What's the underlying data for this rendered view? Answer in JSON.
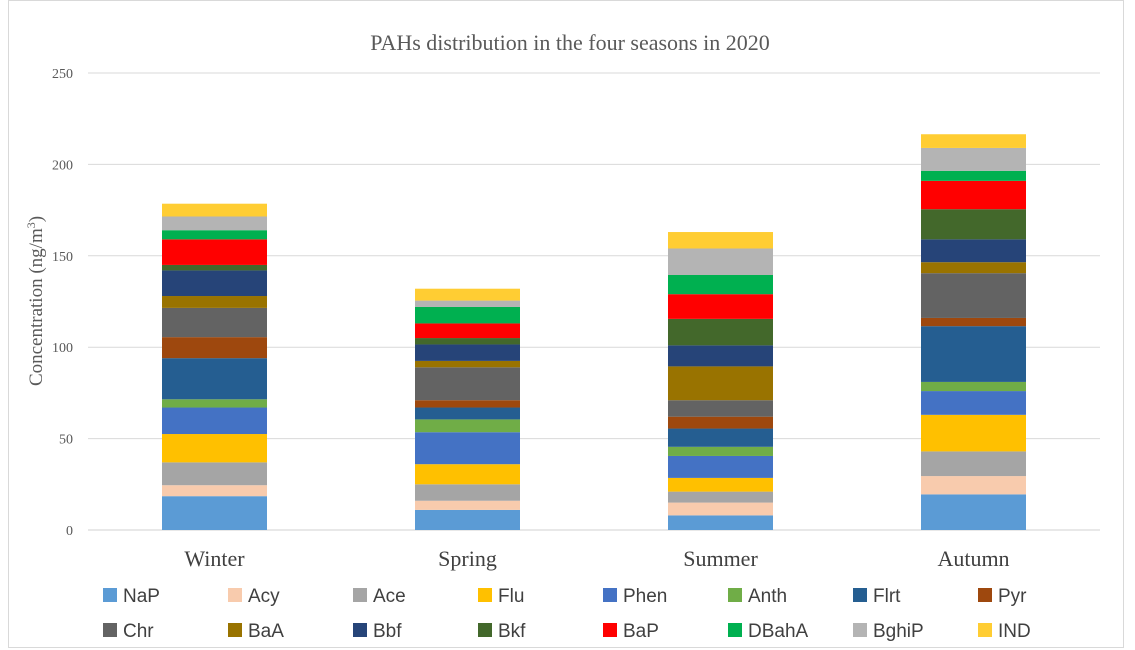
{
  "chart_data": {
    "type": "bar",
    "stacked": true,
    "title": "PAHs distribution in  the four seasons in 2020",
    "ylabel_main": "Concentration (ng/m",
    "ylabel_sup": "3",
    "ylabel_end": ")",
    "xlabel": "",
    "ylim": [
      0,
      250
    ],
    "yticks": [
      0,
      50,
      100,
      150,
      200,
      250
    ],
    "grid": true,
    "legend_position": "bottom",
    "categories": [
      "Winter",
      "Spring",
      "Summer",
      "Autumn"
    ],
    "series": [
      {
        "name": "NaP",
        "color": "#5B9BD5",
        "values": [
          18.5,
          11,
          8,
          19.5
        ]
      },
      {
        "name": "Acy",
        "color": "#F8CBAD",
        "values": [
          6,
          5,
          7,
          10
        ]
      },
      {
        "name": "Ace",
        "color": "#A5A5A5",
        "values": [
          12.5,
          9,
          6,
          13.5
        ]
      },
      {
        "name": "Flu",
        "color": "#FFC000",
        "values": [
          15.5,
          11,
          7.5,
          20
        ]
      },
      {
        "name": "Phen",
        "color": "#4472C4",
        "values": [
          14.5,
          17.5,
          12,
          13
        ]
      },
      {
        "name": "Anth",
        "color": "#70AD47",
        "values": [
          4.5,
          7,
          5,
          5
        ]
      },
      {
        "name": "Flrt",
        "color": "#255E91",
        "values": [
          22.5,
          6.5,
          10,
          30.5
        ]
      },
      {
        "name": "Pyr",
        "color": "#9E480E",
        "values": [
          11.5,
          4,
          6.5,
          4.5
        ]
      },
      {
        "name": "Chr",
        "color": "#636363",
        "values": [
          16,
          18,
          9,
          24.5
        ]
      },
      {
        "name": "BaA",
        "color": "#997300",
        "values": [
          6.5,
          3.5,
          18.5,
          6
        ]
      },
      {
        "name": "Bbf",
        "color": "#264478",
        "values": [
          14,
          9,
          11.5,
          12.5
        ]
      },
      {
        "name": "Bkf",
        "color": "#43682B",
        "values": [
          3,
          3.5,
          14.5,
          16.5
        ]
      },
      {
        "name": "BaP",
        "color": "#FF0000",
        "values": [
          14,
          8,
          13.5,
          15.5
        ]
      },
      {
        "name": "DBahA",
        "color": "#00B050",
        "values": [
          5,
          9,
          10.5,
          5.5
        ]
      },
      {
        "name": "BghiP",
        "color": "#B4B4B4",
        "values": [
          7.5,
          3.5,
          14.5,
          12.5
        ]
      },
      {
        "name": "IND",
        "color": "#FFCD33",
        "values": [
          7,
          6.5,
          9,
          7.5
        ]
      }
    ]
  }
}
